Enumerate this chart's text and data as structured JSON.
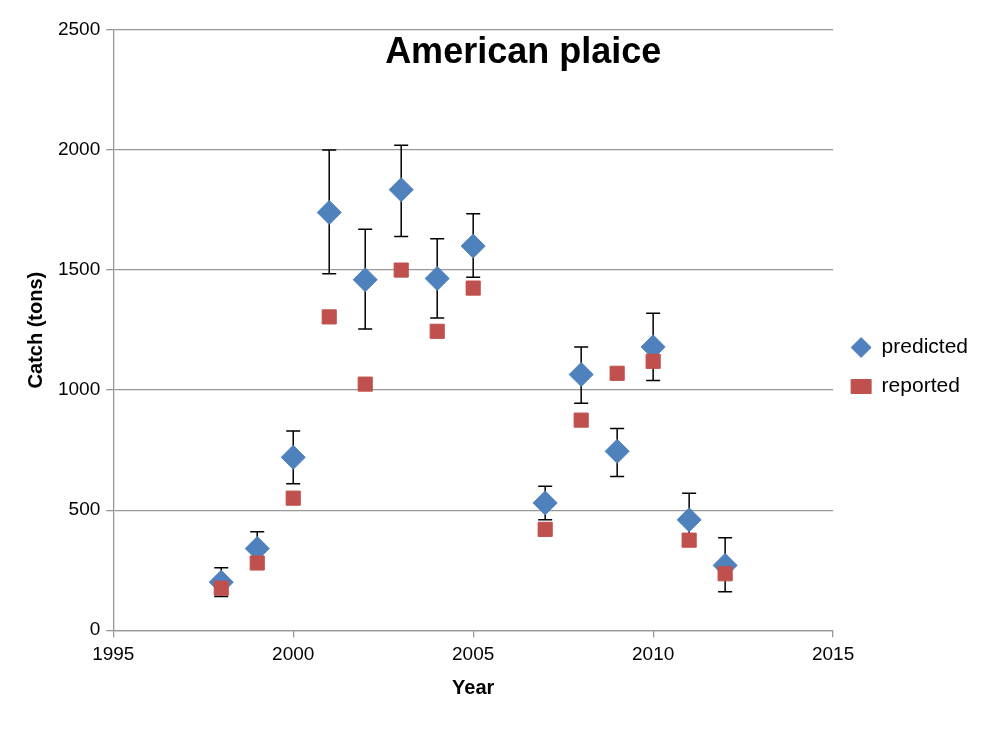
{
  "chart_data": {
    "type": "scatter",
    "title": "American plaice",
    "xlabel": "Year",
    "ylabel": "Catch (tons)",
    "x": [
      1998,
      1999,
      2000,
      2001,
      2002,
      2003,
      2004,
      2005,
      2007,
      2008,
      2009,
      2010,
      2011,
      2012
    ],
    "series": [
      {
        "name": "predicted",
        "color": "#4f81bd",
        "marker": "diamond",
        "values": [
          200,
          340,
          720,
          1740,
          1460,
          1835,
          1465,
          1600,
          530,
          1065,
          745,
          1180,
          460,
          270
        ],
        "errors": [
          [
            140,
            260
          ],
          [
            340,
            410
          ],
          [
            610,
            830
          ],
          [
            1485,
            2000
          ],
          [
            1255,
            1670
          ],
          [
            1640,
            2020
          ],
          [
            1300,
            1630
          ],
          [
            1470,
            1735
          ],
          [
            460,
            600
          ],
          [
            945,
            1180
          ],
          [
            640,
            840
          ],
          [
            1040,
            1320
          ],
          [
            350,
            570
          ],
          [
            160,
            385
          ]
        ]
      },
      {
        "name": "reported",
        "color": "#c0504d",
        "marker": "square",
        "values": [
          175,
          280,
          550,
          1305,
          1025,
          1500,
          1245,
          1425,
          420,
          875,
          1070,
          1120,
          375,
          235
        ]
      }
    ],
    "xlim": [
      1995,
      2015
    ],
    "xticks": [
      1995,
      2000,
      2005,
      2010,
      2015
    ],
    "ylim": [
      0,
      2500
    ],
    "yticks": [
      0,
      500,
      1000,
      1500,
      2000,
      2500
    ],
    "grid": "y",
    "legend": "right"
  }
}
